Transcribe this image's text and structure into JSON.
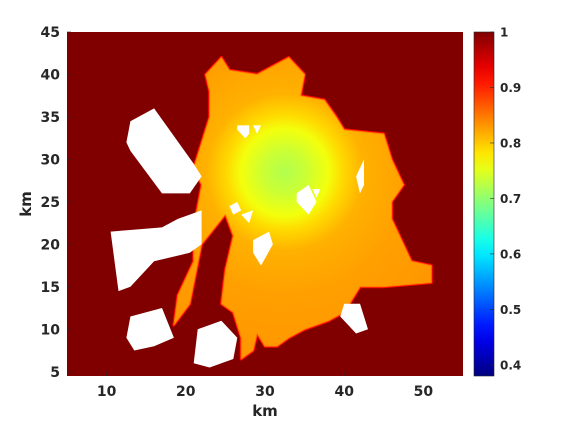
{
  "chart_data": {
    "type": "heatmap",
    "title": "",
    "xlabel": "km",
    "ylabel": "km",
    "xlim": [
      5,
      55
    ],
    "ylim": [
      4.5,
      45
    ],
    "xticks": [
      10,
      20,
      30,
      40,
      50
    ],
    "yticks": [
      5,
      10,
      15,
      20,
      25,
      30,
      35,
      40,
      45
    ],
    "xtick_labels": [
      "10",
      "20",
      "30",
      "40",
      "50"
    ],
    "ytick_labels": [
      "5",
      "10",
      "15",
      "20",
      "25",
      "30",
      "35",
      "40",
      "45"
    ],
    "colormap": "jet",
    "colorbar": {
      "range": [
        0.38,
        1
      ],
      "ticks": [
        0.4,
        0.5,
        0.6,
        0.7,
        0.8,
        0.9,
        1
      ],
      "tick_labels": [
        "0.4",
        "0.5",
        "0.6",
        "0.7",
        "0.8",
        "0.9",
        "1"
      ],
      "placement": "right"
    },
    "background_value": 1,
    "minimum": {
      "x": 32.5,
      "y": 28.5,
      "value": 0.72
    },
    "region_value_at_edge": 0.83,
    "region_outline_km": [
      [
        24.5,
        42
      ],
      [
        25.5,
        40.5
      ],
      [
        29,
        40
      ],
      [
        33,
        42
      ],
      [
        35,
        40
      ],
      [
        34.5,
        37.5
      ],
      [
        37.5,
        37
      ],
      [
        39,
        35
      ],
      [
        40,
        33.5
      ],
      [
        45,
        33
      ],
      [
        46,
        30
      ],
      [
        47.5,
        27
      ],
      [
        46,
        25
      ],
      [
        46,
        23
      ],
      [
        48.5,
        18
      ],
      [
        51,
        17.5
      ],
      [
        51,
        15.5
      ],
      [
        45,
        15
      ],
      [
        42,
        15
      ],
      [
        40,
        12
      ],
      [
        38,
        11
      ],
      [
        35,
        10
      ],
      [
        33,
        9
      ],
      [
        31.5,
        8
      ],
      [
        30,
        8
      ],
      [
        29,
        9.5
      ],
      [
        28.5,
        7.5
      ],
      [
        27,
        6.5
      ],
      [
        27,
        9
      ],
      [
        26,
        12
      ],
      [
        24.5,
        13
      ],
      [
        25,
        17
      ],
      [
        26,
        21
      ],
      [
        25,
        23.5
      ],
      [
        22,
        20
      ],
      [
        20.5,
        13
      ],
      [
        18.5,
        10.5
      ],
      [
        19,
        14
      ],
      [
        21,
        18
      ],
      [
        21,
        22
      ],
      [
        22,
        27
      ],
      [
        21,
        29
      ],
      [
        23,
        35
      ],
      [
        23,
        38
      ],
      [
        22.5,
        40
      ]
    ],
    "masked_regions_km": [
      [
        [
          13,
          34.5
        ],
        [
          16,
          36
        ],
        [
          21,
          29.5
        ],
        [
          22,
          28
        ],
        [
          20.5,
          26
        ],
        [
          17,
          26
        ],
        [
          13,
          31
        ],
        [
          12.5,
          32
        ]
      ],
      [
        [
          10.5,
          21.5
        ],
        [
          17,
          22
        ],
        [
          19,
          23
        ],
        [
          22,
          24
        ],
        [
          22,
          20
        ],
        [
          20.5,
          19
        ],
        [
          16,
          18
        ],
        [
          13,
          15
        ],
        [
          11.5,
          14.5
        ]
      ],
      [
        [
          13,
          11.5
        ],
        [
          17,
          12.5
        ],
        [
          18.5,
          9
        ],
        [
          16,
          8
        ],
        [
          13.5,
          7.5
        ],
        [
          12.5,
          9
        ]
      ],
      [
        [
          21.5,
          10
        ],
        [
          24.5,
          11
        ],
        [
          26.5,
          9
        ],
        [
          26,
          6.5
        ],
        [
          23,
          5.5
        ],
        [
          21,
          6
        ]
      ],
      [
        [
          40,
          13
        ],
        [
          42,
          13
        ],
        [
          43,
          10
        ],
        [
          41.5,
          9.5
        ],
        [
          39.5,
          11.5
        ]
      ],
      [
        [
          26.5,
          34
        ],
        [
          28,
          34
        ],
        [
          28,
          33
        ],
        [
          27.5,
          32.5
        ],
        [
          26.5,
          33.5
        ]
      ],
      [
        [
          28.5,
          34
        ],
        [
          29.5,
          34
        ],
        [
          29,
          33
        ]
      ],
      [
        [
          34,
          26
        ],
        [
          35.5,
          27
        ],
        [
          36.5,
          25
        ],
        [
          35.5,
          23.5
        ],
        [
          34,
          25
        ]
      ],
      [
        [
          28.5,
          20.5
        ],
        [
          30.5,
          21.5
        ],
        [
          31,
          20
        ],
        [
          29.5,
          17.5
        ],
        [
          28.5,
          19
        ]
      ],
      [
        [
          27,
          23.5
        ],
        [
          28.5,
          24
        ],
        [
          28,
          22.5
        ]
      ],
      [
        [
          25.5,
          24.5
        ],
        [
          26.5,
          25
        ],
        [
          27,
          24
        ],
        [
          26,
          23.5
        ]
      ],
      [
        [
          41.5,
          28
        ],
        [
          42.5,
          30
        ],
        [
          42.5,
          27
        ],
        [
          42,
          26
        ]
      ],
      [
        [
          36,
          26.5
        ],
        [
          37,
          26.5
        ],
        [
          36.5,
          25.5
        ]
      ]
    ]
  }
}
